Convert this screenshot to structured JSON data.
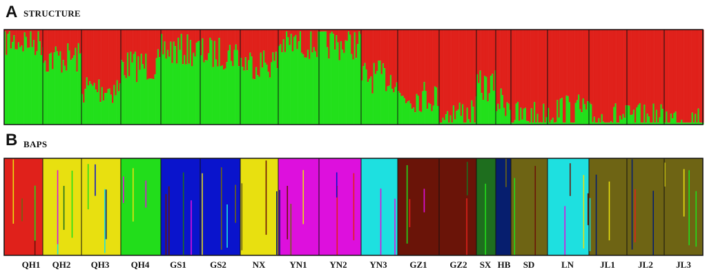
{
  "chart_data": [
    {
      "type": "bar",
      "stacked": true,
      "panel": "A",
      "title": "STRUCTURE",
      "ylim": [
        0,
        1
      ],
      "populations": [
        "QH1",
        "QH2",
        "QH3",
        "QH4",
        "GS1",
        "GS2",
        "NX",
        "YN1",
        "YN2",
        "YN3",
        "GZ1",
        "GZ2",
        "SX",
        "HB",
        "SD",
        "LN",
        "JL1",
        "JL2",
        "JL3"
      ],
      "series": [
        {
          "color": "#e0211b",
          "values": [
            0.12,
            0.3,
            0.62,
            0.38,
            0.22,
            0.25,
            0.35,
            0.15,
            0.15,
            0.5,
            0.7,
            0.88,
            0.6,
            0.75,
            0.92,
            0.85,
            0.93,
            0.95,
            0.95
          ]
        },
        {
          "color": "#22e01b",
          "values": [
            0.88,
            0.7,
            0.38,
            0.62,
            0.78,
            0.75,
            0.65,
            0.85,
            0.85,
            0.5,
            0.3,
            0.12,
            0.4,
            0.25,
            0.08,
            0.15,
            0.07,
            0.05,
            0.05
          ]
        }
      ]
    },
    {
      "type": "bar",
      "stacked": true,
      "panel": "B",
      "title": "BAPS",
      "ylim": [
        0,
        1
      ],
      "populations": [
        "QH1",
        "QH2",
        "QH3",
        "QH4",
        "GS1",
        "GS2",
        "NX",
        "YN1",
        "YN2",
        "YN3",
        "GZ1",
        "GZ2",
        "SX",
        "HB",
        "SD",
        "LN",
        "JL1",
        "JL2",
        "JL3"
      ],
      "cluster_colors": [
        "#e0211b",
        "#e8e010",
        "#22dd1b",
        "#0a14cc",
        "#dd10dd",
        "#1ee0e0",
        "#6a1408",
        "#6e6414",
        "#061e6e",
        "#1e6e1e"
      ],
      "dominant_cluster": [
        "#e0211b",
        "#e8e010",
        "#e8e010",
        "#22dd1b",
        "#0a14cc",
        "#0a14cc",
        "#e8e010",
        "#dd10dd",
        "#dd10dd",
        "#1ee0e0",
        "#6a1408",
        "#6a1408",
        "#1e6e1e",
        "#061e6e",
        "#6e6414",
        "#1ee0e0",
        "#6e6414",
        "#6e6414",
        "#6e6414"
      ]
    }
  ],
  "panel_a": {
    "letter": "A",
    "title": "STRUCTURE"
  },
  "panel_b": {
    "letter": "B",
    "title": "BAPS"
  },
  "legend": "none",
  "grid": false
}
